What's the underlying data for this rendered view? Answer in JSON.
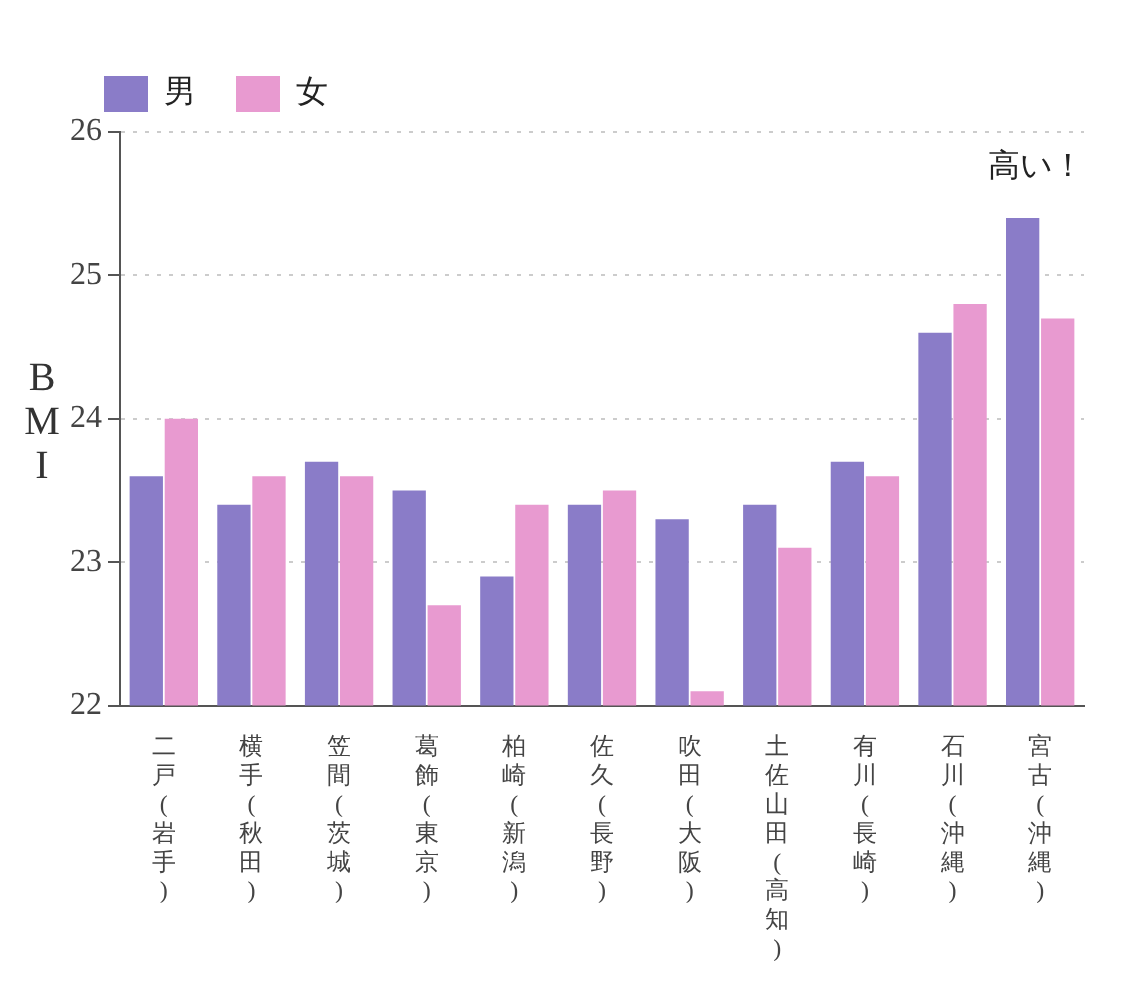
{
  "chart_data": {
    "type": "bar",
    "ylabel": "BMI",
    "categories": [
      "二戸(岩手)",
      "横手(秋田)",
      "笠間(茨城)",
      "葛飾(東京)",
      "柏崎(新潟)",
      "佐久(長野)",
      "吹田(大阪)",
      "土佐山田(高知)",
      "有川(長崎)",
      "石川(沖縄)",
      "宮古(沖縄)"
    ],
    "series": [
      {
        "name": "男",
        "color": "#8a7cc8",
        "values": [
          23.6,
          23.4,
          23.7,
          23.5,
          22.9,
          23.4,
          23.3,
          23.4,
          23.7,
          24.6,
          25.4
        ]
      },
      {
        "name": "女",
        "color": "#e89ad0",
        "values": [
          24.0,
          23.6,
          23.6,
          22.7,
          23.4,
          23.5,
          22.1,
          23.1,
          23.6,
          24.8,
          24.7
        ]
      }
    ],
    "ylim": [
      22,
      26
    ],
    "yticks": [
      22,
      23,
      24,
      25,
      26
    ],
    "grid": "y",
    "legend": "top left",
    "annotations": [
      "高い！"
    ]
  }
}
